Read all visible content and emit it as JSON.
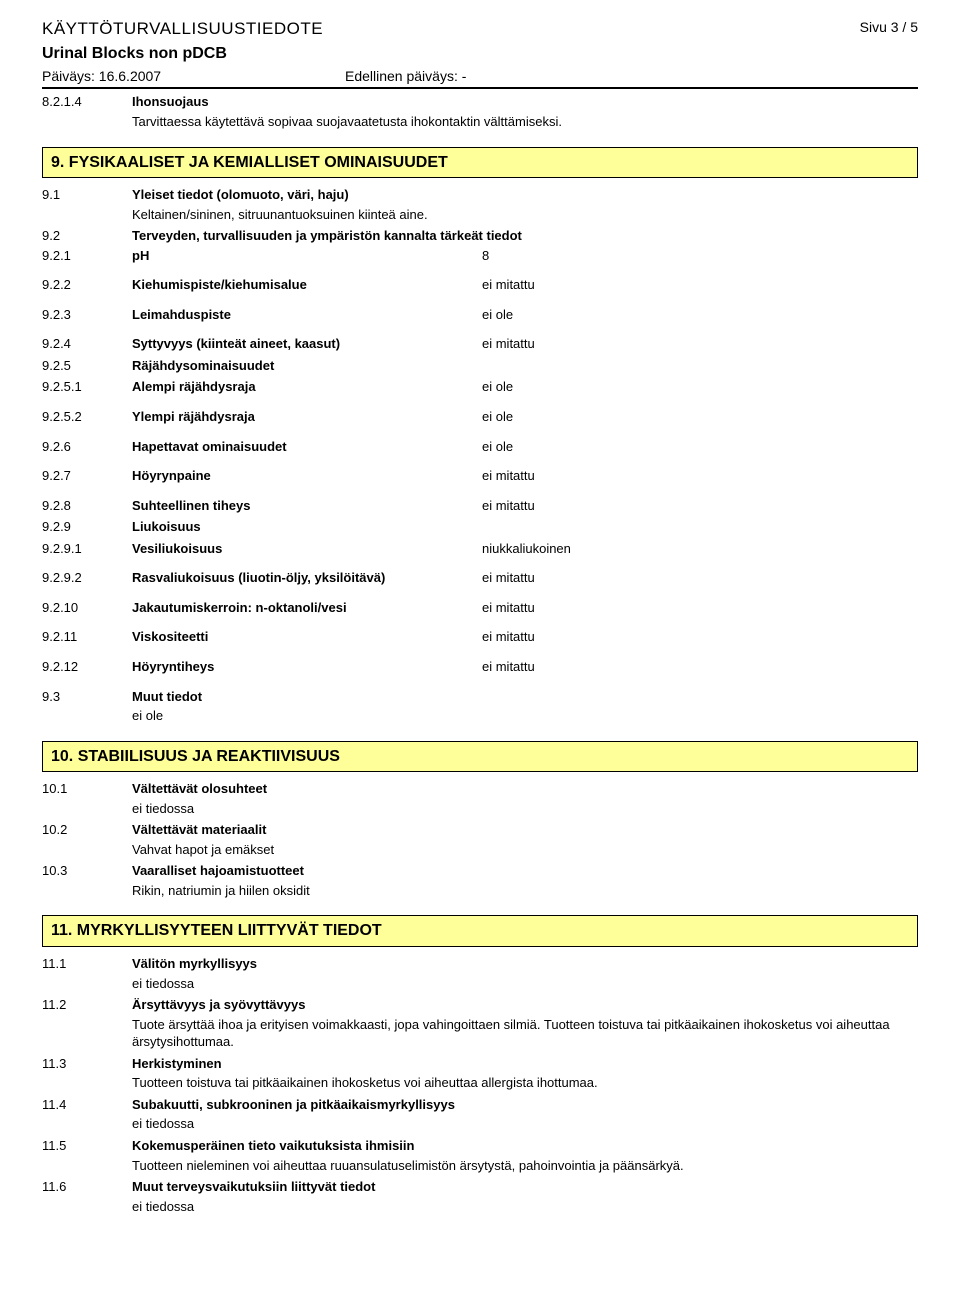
{
  "colors": {
    "heading_bg": "#ffff99",
    "heading_border": "#000000",
    "text": "#000000",
    "background": "#ffffff"
  },
  "fonts": {
    "body_family": "Verdana, Arial, sans-serif",
    "body_size_pt": 10,
    "heading_size_pt": 12
  },
  "header": {
    "doc_title": "KÄYTTÖTURVALLISUUSTIEDOTE",
    "page": "Sivu  3 / 5",
    "product": "Urinal Blocks non pDCB",
    "date": "Päiväys: 16.6.2007",
    "prev_date": "Edellinen päiväys: -"
  },
  "pre": {
    "num": "8.2.1.4",
    "label": "Ihonsuojaus",
    "text": "Tarvittaessa käytettävä sopivaa suojavaatetusta ihokontaktin välttämiseksi."
  },
  "sec9": {
    "heading": "9. FYSIKAALISET JA KEMIALLISET OMINAISUUDET",
    "r91": {
      "num": "9.1",
      "label": "Yleiset tiedot (olomuoto, väri, haju)",
      "text": "Keltainen/sininen, sitruunantuoksuinen kiinteä aine."
    },
    "r92": {
      "num": "9.2",
      "label": "Terveyden, turvallisuuden ja ympäristön kannalta tärkeät tiedot"
    },
    "props": [
      {
        "num": "9.2.1",
        "label": "pH",
        "val": "8"
      },
      {
        "num": "9.2.2",
        "label": "Kiehumispiste/kiehumisalue",
        "val": "ei mitattu"
      },
      {
        "num": "9.2.3",
        "label": "Leimahduspiste",
        "val": "ei ole"
      },
      {
        "num": "9.2.4",
        "label": "Syttyvyys (kiinteät aineet, kaasut)",
        "val": "ei mitattu"
      },
      {
        "num": "9.2.5",
        "label": "Räjähdysominaisuudet",
        "val": ""
      },
      {
        "num": "9.2.5.1",
        "label": "Alempi räjähdysraja",
        "val": "ei ole"
      },
      {
        "num": "9.2.5.2",
        "label": "Ylempi räjähdysraja",
        "val": "ei ole"
      },
      {
        "num": "9.2.6",
        "label": "Hapettavat ominaisuudet",
        "val": "ei ole"
      },
      {
        "num": "9.2.7",
        "label": "Höyrynpaine",
        "val": "ei mitattu"
      },
      {
        "num": "9.2.8",
        "label": "Suhteellinen tiheys",
        "val": "ei mitattu"
      },
      {
        "num": "9.2.9",
        "label": "Liukoisuus",
        "val": ""
      },
      {
        "num": "9.2.9.1",
        "label": "Vesiliukoisuus",
        "val": "niukkaliukoinen"
      },
      {
        "num": "9.2.9.2",
        "label": "Rasvaliukoisuus (liuotin-öljy, yksilöitävä)",
        "val": "ei mitattu"
      },
      {
        "num": "9.2.10",
        "label": "Jakautumiskerroin: n-oktanoli/vesi",
        "val": "ei mitattu"
      },
      {
        "num": "9.2.11",
        "label": "Viskositeetti",
        "val": "ei mitattu"
      },
      {
        "num": "9.2.12",
        "label": "Höyryntiheys",
        "val": "ei mitattu"
      }
    ],
    "r93": {
      "num": "9.3",
      "label": "Muut tiedot",
      "text": "ei ole"
    }
  },
  "sec10": {
    "heading": "10. STABIILISUUS JA REAKTIIVISUUS",
    "items": [
      {
        "num": "10.1",
        "label": "Vältettävät olosuhteet",
        "text": "ei tiedossa"
      },
      {
        "num": "10.2",
        "label": "Vältettävät materiaalit",
        "text": "Vahvat hapot ja emäkset"
      },
      {
        "num": "10.3",
        "label": "Vaaralliset hajoamistuotteet",
        "text": "Rikin, natriumin ja hiilen oksidit"
      }
    ]
  },
  "sec11": {
    "heading": "11. MYRKYLLISYYTEEN LIITTYVÄT TIEDOT",
    "items": [
      {
        "num": "11.1",
        "label": "Välitön myrkyllisyys",
        "text": "ei tiedossa"
      },
      {
        "num": "11.2",
        "label": "Ärsyttävyys ja syövyttävyys",
        "text": "Tuote ärsyttää ihoa ja erityisen voimakkaasti, jopa vahingoittaen silmiä. Tuotteen toistuva tai pitkäaikainen ihokosketus voi aiheuttaa ärsytysihottumaa."
      },
      {
        "num": "11.3",
        "label": "Herkistyminen",
        "text": "Tuotteen toistuva tai pitkäaikainen ihokosketus voi aiheuttaa allergista ihottumaa."
      },
      {
        "num": "11.4",
        "label": "Subakuutti, subkrooninen ja pitkäaikaismyrkyllisyys",
        "text": "ei tiedossa"
      },
      {
        "num": "11.5",
        "label": "Kokemusperäinen tieto vaikutuksista ihmisiin",
        "text": "Tuotteen nieleminen voi aiheuttaa ruuansulatuselimistön ärsytystä, pahoinvointia ja päänsärkyä."
      },
      {
        "num": "11.6",
        "label": "Muut terveysvaikutuksiin liittyvät tiedot",
        "text": "ei tiedossa"
      }
    ]
  }
}
